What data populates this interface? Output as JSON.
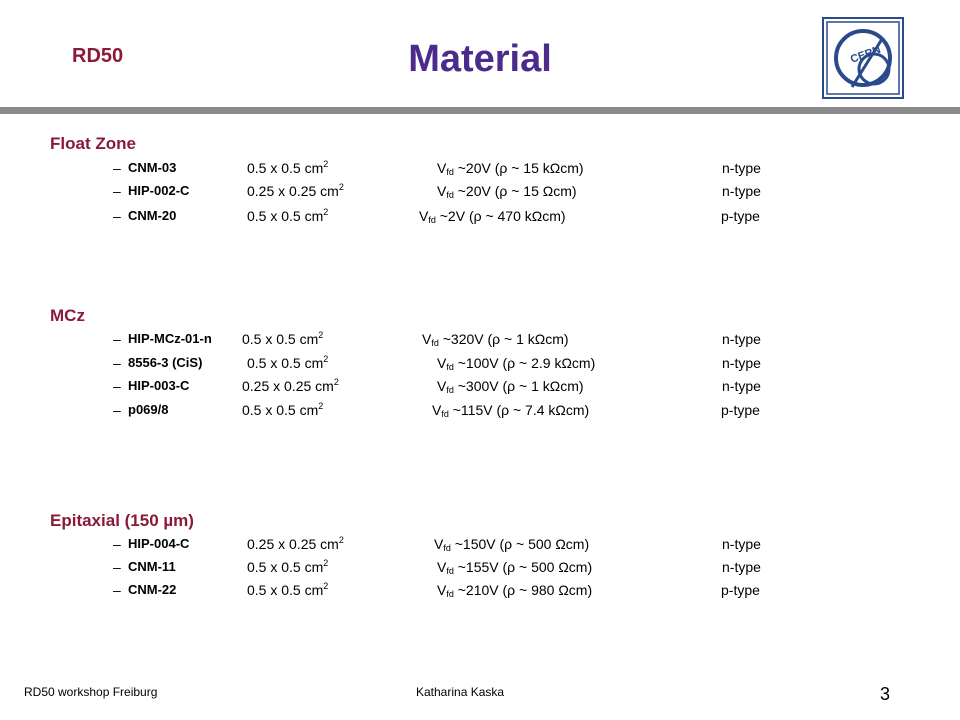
{
  "header": {
    "tag": "RD50",
    "title": "Material",
    "logo_text": "CERN"
  },
  "sections": [
    {
      "heading": "Float Zone",
      "rows": [
        {
          "name": "CNM-03",
          "size": "0.5 x 0.5 cm",
          "size_exp": "2",
          "v": "V",
          "v_sub": "fd",
          "vfd": " ~20V (ρ ~ 15 kΩcm)",
          "type": "n-type"
        },
        {
          "name": "HIP-002-C",
          "size": "0.25 x 0.25 cm",
          "size_exp": "2",
          "v": "V",
          "v_sub": "fd",
          "vfd": " ~20V (ρ ~ 15 Ωcm)",
          "type": "n-type"
        },
        {
          "name": "CNM-20",
          "size": "0.5 x 0.5 cm",
          "size_exp": "2",
          "v": "V",
          "v_sub": "fd",
          "vfd": " ~2V (ρ ~ 470 kΩcm)",
          "type": "p-type"
        }
      ]
    },
    {
      "heading": "MCz",
      "rows": [
        {
          "name": "HIP-MCz-01-n",
          "size": "0.5 x 0.5 cm",
          "size_exp": "2",
          "v": "V",
          "v_sub": "fd",
          "vfd": " ~320V (ρ ~ 1 kΩcm)",
          "type": "n-type"
        },
        {
          "name": "8556-3 (CiS)",
          "size": "0.5 x 0.5 cm",
          "size_exp": "2",
          "v": "V",
          "v_sub": "fd",
          "vfd": " ~100V (ρ ~ 2.9 kΩcm)",
          "type": "n-type"
        },
        {
          "name": "HIP-003-C",
          "size": "0.25 x 0.25 cm",
          "size_exp": "2",
          "v": "V",
          "v_sub": "fd",
          "vfd": " ~300V (ρ ~ 1 kΩcm)",
          "type": "n-type"
        },
        {
          "name": "p069/8",
          "size": "0.5 x 0.5 cm",
          "size_exp": "2",
          "v": "V",
          "v_sub": "fd",
          "vfd": " ~115V (ρ ~ 7.4 kΩcm)",
          "type": "p-type"
        }
      ]
    },
    {
      "heading": "Epitaxial (150 µm)",
      "rows": [
        {
          "name": "HIP-004-C",
          "size": "0.25 x 0.25 cm",
          "size_exp": "2",
          "v": "V",
          "v_sub": "fd",
          "vfd": " ~150V (ρ ~ 500 Ωcm)",
          "type": "n-type"
        },
        {
          "name": "CNM-11",
          "size": "0.5 x 0.5 cm",
          "size_exp": "2",
          "v": "V",
          "v_sub": "fd",
          "vfd": " ~155V (ρ ~ 500 Ωcm)",
          "type": "n-type"
        },
        {
          "name": "CNM-22",
          "size": "0.5 x 0.5 cm",
          "size_exp": "2",
          "v": "V",
          "v_sub": "fd",
          "vfd": " ~210V (ρ ~ 980 Ωcm)",
          "type": "p-type"
        }
      ]
    }
  ],
  "dash": "–",
  "footer": {
    "left": "RD50 workshop Freiburg",
    "center": "Katharina Kaska",
    "page": "3"
  },
  "colors": {
    "accent": "#8B1A3A",
    "title": "#4B2C8C",
    "logo": "#2B4A8C",
    "rule": "#8A8A8A"
  }
}
